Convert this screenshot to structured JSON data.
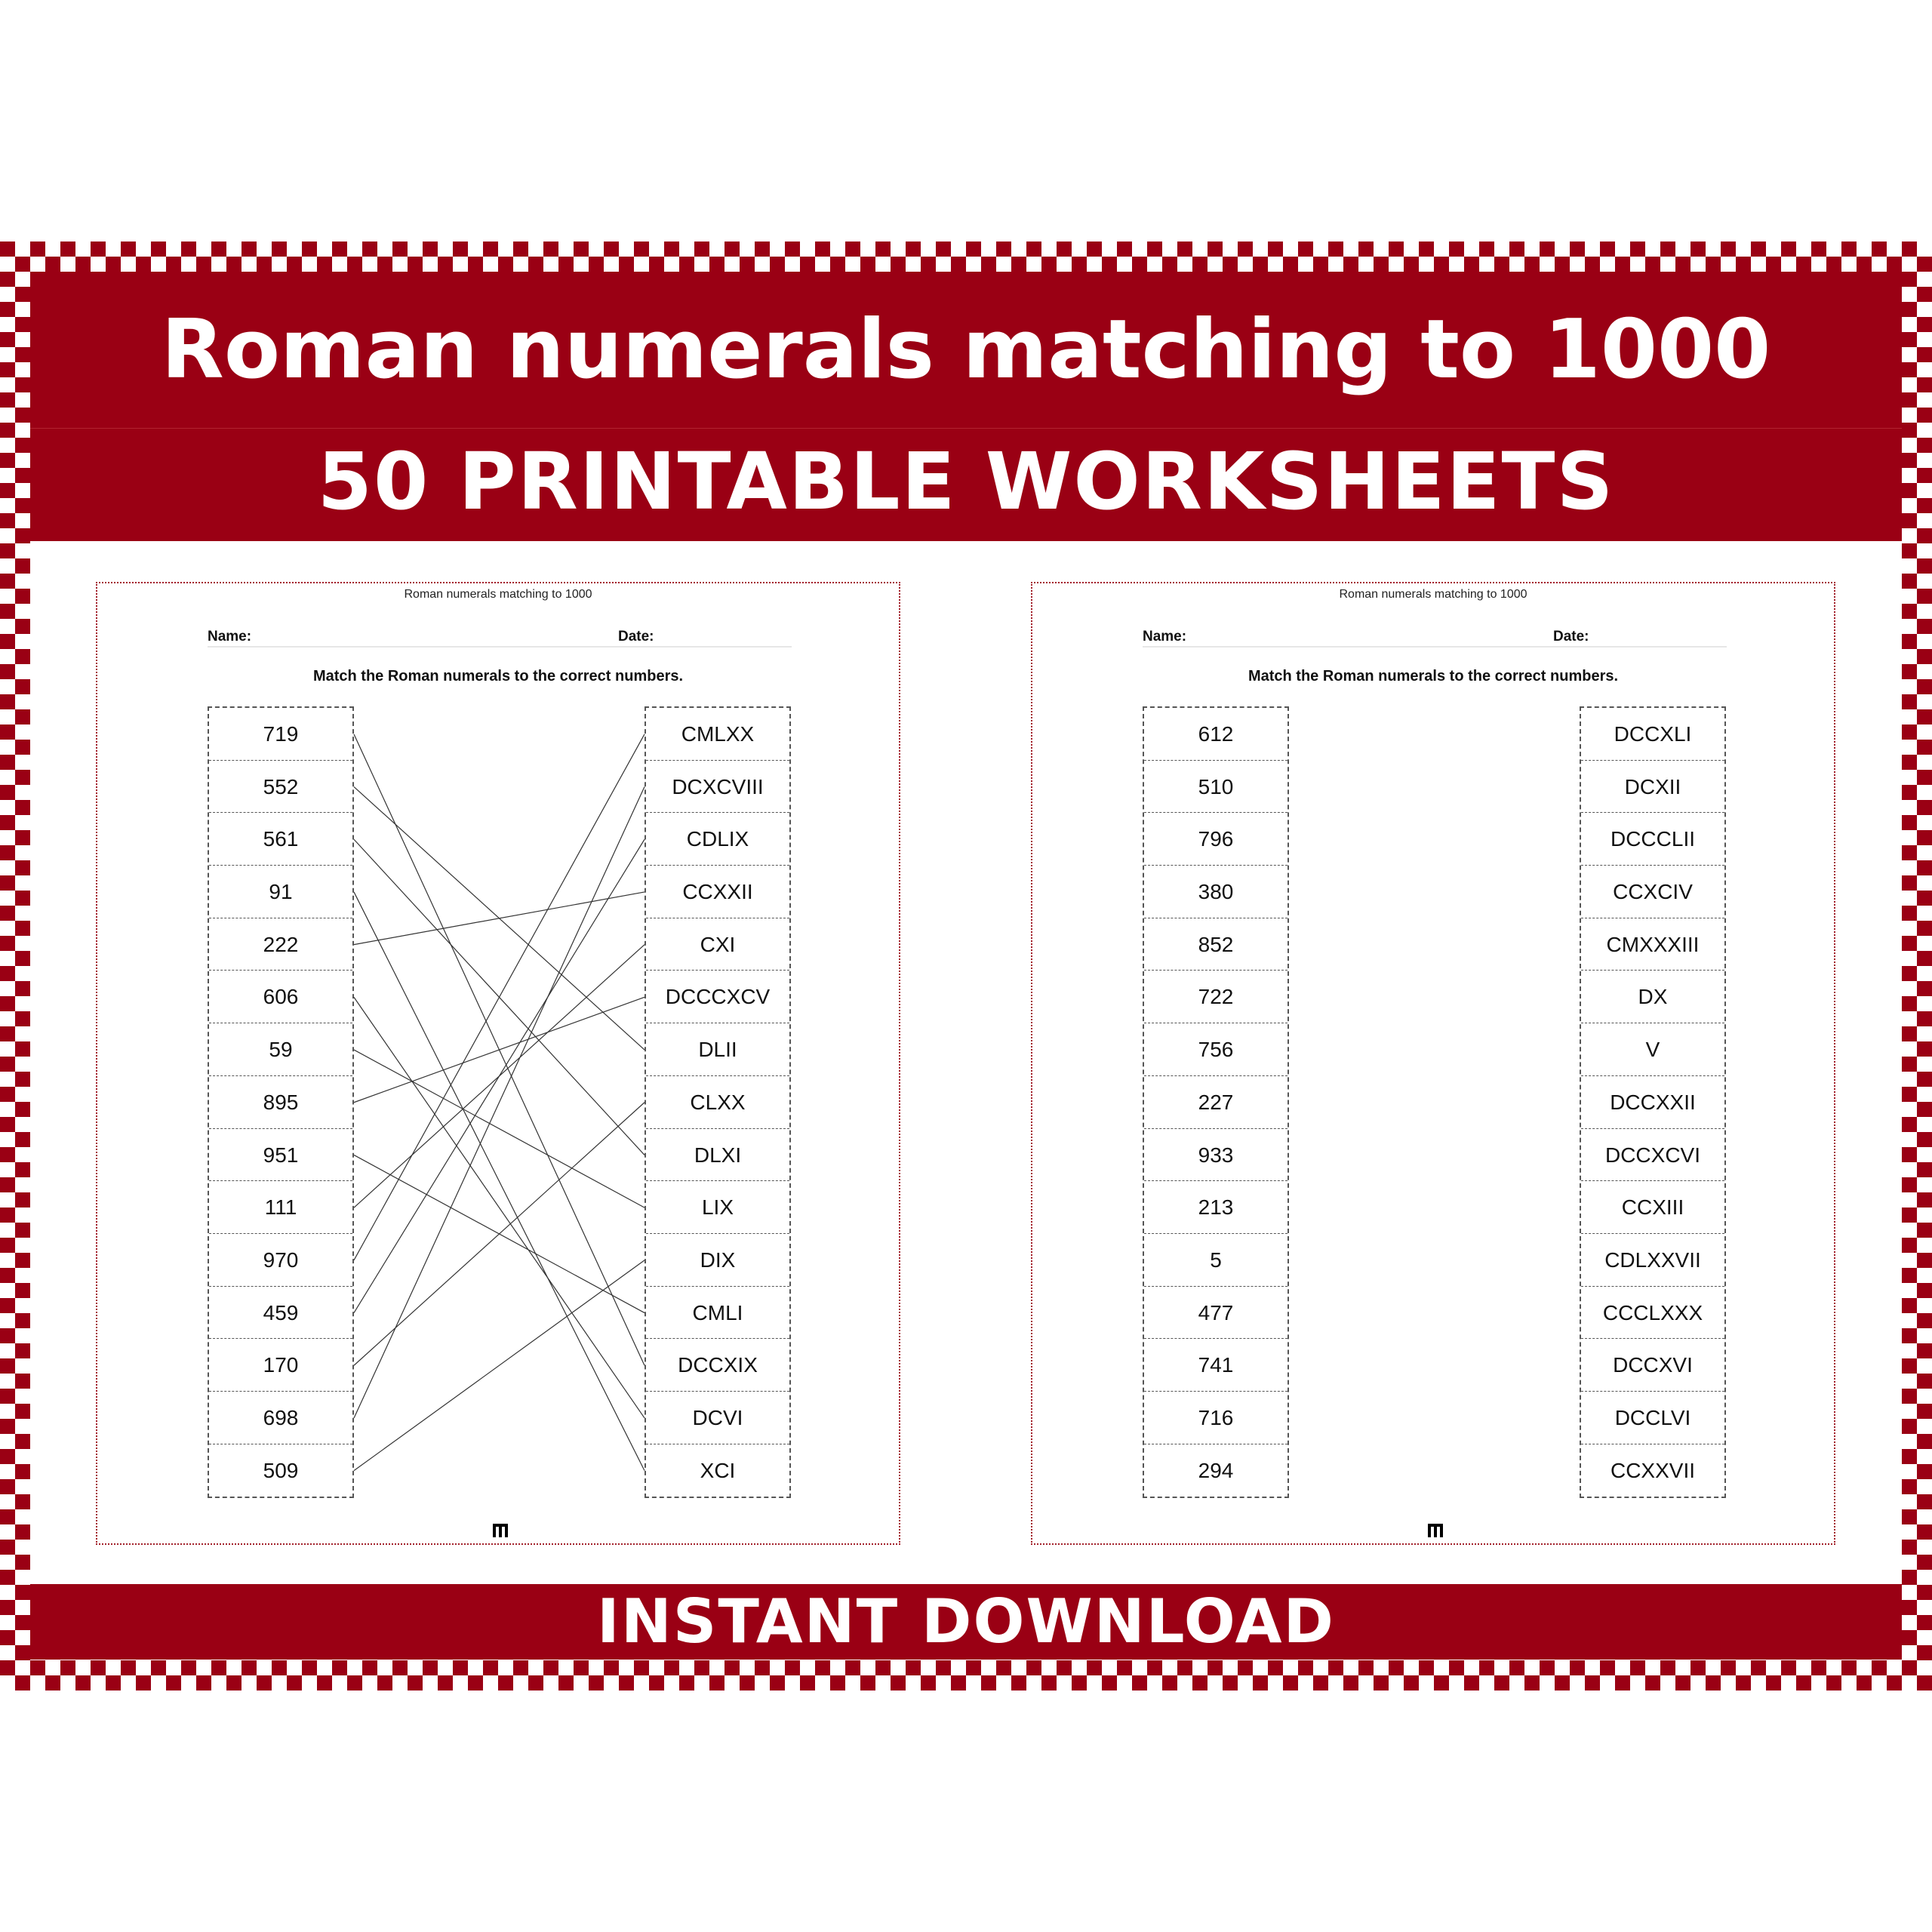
{
  "colors": {
    "brand_red": "#9a0014",
    "white": "#ffffff"
  },
  "banner": {
    "title": "Roman numerals matching to 1000",
    "subtitle": "50 PRINTABLE WORKSHEETS",
    "footer": "INSTANT DOWNLOAD"
  },
  "worksheets": [
    {
      "title": "Roman numerals matching to 1000",
      "name_label": "Name:",
      "date_label": "Date:",
      "instruction": "Match the Roman numerals to the correct numbers.",
      "numbers": [
        "719",
        "552",
        "561",
        "91",
        "222",
        "606",
        "59",
        "895",
        "951",
        "111",
        "970",
        "459",
        "170",
        "698",
        "509"
      ],
      "numerals": [
        "CMLXX",
        "DCXCVIII",
        "CDLIX",
        "CCXXII",
        "CXI",
        "DCCCXCV",
        "DLII",
        "CLXX",
        "DLXI",
        "LIX",
        "DIX",
        "CMLI",
        "DCCXIX",
        "DCVI",
        "XCI"
      ],
      "answer_lines": [
        [
          0,
          12
        ],
        [
          1,
          6
        ],
        [
          2,
          8
        ],
        [
          3,
          14
        ],
        [
          4,
          3
        ],
        [
          5,
          13
        ],
        [
          6,
          9
        ],
        [
          7,
          5
        ],
        [
          8,
          11
        ],
        [
          9,
          4
        ],
        [
          10,
          0
        ],
        [
          11,
          2
        ],
        [
          12,
          7
        ],
        [
          13,
          1
        ],
        [
          14,
          10
        ]
      ],
      "logo_icon": "logo-glyph-icon"
    },
    {
      "title": "Roman numerals matching to 1000",
      "name_label": "Name:",
      "date_label": "Date:",
      "instruction": "Match the Roman numerals to the correct numbers.",
      "numbers": [
        "612",
        "510",
        "796",
        "380",
        "852",
        "722",
        "756",
        "227",
        "933",
        "213",
        "5",
        "477",
        "741",
        "716",
        "294"
      ],
      "numerals": [
        "DCCXLI",
        "DCXII",
        "DCCCLII",
        "CCXCIV",
        "CMXXXIII",
        "DX",
        "V",
        "DCCXXII",
        "DCCXCVI",
        "CCXIII",
        "CDLXXVII",
        "CCCLXXX",
        "DCCXVI",
        "DCCLVI",
        "CCXXVII"
      ],
      "answer_lines": [],
      "logo_icon": "logo-glyph-icon"
    }
  ]
}
